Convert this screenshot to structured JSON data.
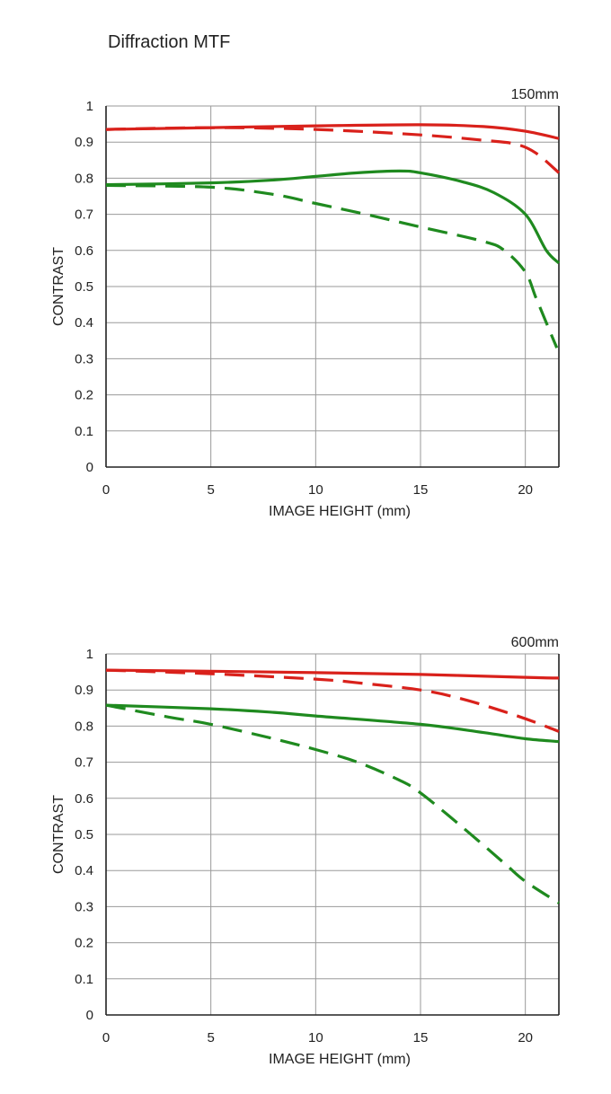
{
  "page": {
    "title": "Diffraction MTF"
  },
  "colors": {
    "red": "#d9211b",
    "green": "#1f8a1f",
    "grid": "#9a9a9a",
    "axis": "#222222"
  },
  "chart_data": [
    {
      "type": "line",
      "focal_label": "150mm",
      "xlabel": "IMAGE HEIGHT (mm)",
      "ylabel": "CONTRAST",
      "xlim": [
        0,
        21.6
      ],
      "ylim": [
        0,
        1
      ],
      "x_ticks": [
        0,
        5,
        10,
        15,
        20
      ],
      "y_ticks": [
        0,
        0.1,
        0.2,
        0.3,
        0.4,
        0.5,
        0.6,
        0.7,
        0.8,
        0.9,
        1
      ],
      "y_tick_labels": [
        "0",
        "0.1",
        "0.2",
        "0.3",
        "0.4",
        "0.5",
        "0.6",
        "0.7",
        "0.8",
        "0.9",
        "1"
      ],
      "grid": true,
      "series": [
        {
          "color": "red",
          "style": "solid",
          "x": [
            0,
            5,
            10,
            15,
            18,
            20,
            21.6
          ],
          "y": [
            0.935,
            0.94,
            0.945,
            0.948,
            0.943,
            0.93,
            0.91
          ]
        },
        {
          "color": "red",
          "style": "dashed",
          "x": [
            0,
            5,
            10,
            15,
            18,
            19.5,
            20.5,
            21.6
          ],
          "y": [
            0.935,
            0.94,
            0.935,
            0.92,
            0.905,
            0.895,
            0.87,
            0.815
          ]
        },
        {
          "color": "green",
          "style": "solid",
          "x": [
            0,
            5,
            8,
            10,
            12,
            14,
            15,
            17,
            18.5,
            20,
            21,
            21.6
          ],
          "y": [
            0.782,
            0.787,
            0.795,
            0.805,
            0.815,
            0.82,
            0.815,
            0.79,
            0.76,
            0.7,
            0.6,
            0.565
          ]
        },
        {
          "color": "green",
          "style": "dashed",
          "x": [
            0,
            5,
            8,
            10,
            12,
            15,
            18,
            19,
            20,
            20.5,
            21,
            21.5
          ],
          "y": [
            0.78,
            0.775,
            0.755,
            0.73,
            0.705,
            0.665,
            0.625,
            0.6,
            0.54,
            0.47,
            0.4,
            0.33
          ]
        }
      ]
    },
    {
      "type": "line",
      "focal_label": "600mm",
      "xlabel": "IMAGE HEIGHT (mm)",
      "ylabel": "CONTRAST",
      "xlim": [
        0,
        21.6
      ],
      "ylim": [
        0,
        1
      ],
      "x_ticks": [
        0,
        5,
        10,
        15,
        20
      ],
      "y_ticks": [
        0,
        0.1,
        0.2,
        0.3,
        0.4,
        0.5,
        0.6,
        0.7,
        0.8,
        0.9,
        1
      ],
      "y_tick_labels": [
        "0",
        "0.1",
        "0.2",
        "0.3",
        "0.4",
        "0.5",
        "0.6",
        "0.7",
        "0.8",
        "0.9",
        "1"
      ],
      "grid": true,
      "series": [
        {
          "color": "red",
          "style": "solid",
          "x": [
            0,
            5,
            10,
            15,
            20,
            21.6
          ],
          "y": [
            0.955,
            0.952,
            0.948,
            0.943,
            0.935,
            0.933
          ]
        },
        {
          "color": "red",
          "style": "dashed",
          "x": [
            0,
            5,
            10,
            12,
            15,
            17,
            19,
            20.5,
            21.6
          ],
          "y": [
            0.955,
            0.945,
            0.93,
            0.92,
            0.9,
            0.875,
            0.84,
            0.81,
            0.785
          ]
        },
        {
          "color": "green",
          "style": "solid",
          "x": [
            0,
            5,
            8,
            10,
            15,
            18,
            20,
            21.6
          ],
          "y": [
            0.858,
            0.848,
            0.838,
            0.828,
            0.805,
            0.782,
            0.765,
            0.757
          ]
        },
        {
          "color": "green",
          "style": "dashed",
          "x": [
            0,
            3,
            5,
            8,
            10,
            12,
            14,
            15,
            17,
            19,
            20,
            21.6
          ],
          "y": [
            0.858,
            0.825,
            0.805,
            0.765,
            0.735,
            0.7,
            0.65,
            0.615,
            0.52,
            0.42,
            0.37,
            0.31
          ]
        }
      ]
    }
  ]
}
